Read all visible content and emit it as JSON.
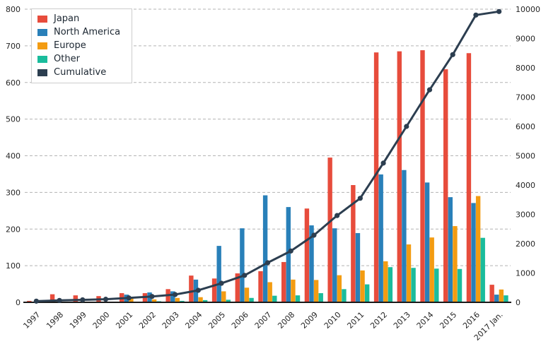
{
  "chart_data": {
    "type": "bar+line combo",
    "grid": "horizontal-dashed",
    "legend_position": "top-left",
    "categories": [
      "1997",
      "1998",
      "1999",
      "2000",
      "2001",
      "2002",
      "2003",
      "2004",
      "2005",
      "2006",
      "2007",
      "2008",
      "2009",
      "2010",
      "2011",
      "2012",
      "2013",
      "2014",
      "2015",
      "2016",
      "2017 Jan."
    ],
    "series": [
      {
        "name": "Japan",
        "type": "bar",
        "axis": "left",
        "color": "#e74c3c",
        "values": [
          4,
          22,
          19,
          17,
          25,
          25,
          36,
          73,
          65,
          79,
          85,
          110,
          256,
          395,
          320,
          682,
          685,
          688,
          636,
          680,
          48
        ]
      },
      {
        "name": "North America",
        "type": "bar",
        "axis": "left",
        "color": "#2980b9",
        "values": [
          0,
          0,
          0,
          0,
          21,
          27,
          30,
          62,
          154,
          202,
          292,
          260,
          210,
          202,
          189,
          349,
          361,
          327,
          287,
          271,
          21
        ]
      },
      {
        "name": "Europe",
        "type": "bar",
        "axis": "left",
        "color": "#f39c12",
        "values": [
          0,
          0,
          0,
          0,
          10,
          8,
          12,
          14,
          30,
          40,
          55,
          62,
          61,
          74,
          87,
          112,
          158,
          177,
          208,
          290,
          35
        ]
      },
      {
        "name": "Other",
        "type": "bar",
        "axis": "left",
        "color": "#1abc9c",
        "values": [
          0,
          0,
          0,
          0,
          0,
          3,
          4,
          6,
          7,
          12,
          18,
          19,
          25,
          36,
          49,
          96,
          94,
          92,
          91,
          176,
          19
        ]
      },
      {
        "name": "Cumulative",
        "type": "line",
        "axis": "right",
        "color": "#2c3e50",
        "values": [
          40,
          65,
          85,
          105,
          150,
          200,
          265,
          410,
          650,
          920,
          1350,
          1750,
          2290,
          2960,
          3550,
          4750,
          6000,
          7250,
          8450,
          9800,
          9920
        ]
      }
    ],
    "left_axis": {
      "min": 0,
      "max": 800,
      "step": 100,
      "tick_labels": [
        "0",
        "100",
        "200",
        "300",
        "400",
        "500",
        "600",
        "700",
        "800"
      ]
    },
    "right_axis": {
      "min": 0,
      "max": 10000,
      "step": 1000,
      "tick_labels": [
        "0",
        "1000",
        "2000",
        "3000",
        "4000",
        "5000",
        "6000",
        "7000",
        "8000",
        "9000",
        "10000"
      ]
    }
  },
  "colors": {
    "background": "#ffffff",
    "gridline": "#b3b3b3",
    "axis_line": "#1a1a1a",
    "tick_label": "#262626",
    "legend_border": "#cdcdcd",
    "legend_text": "#1b2631"
  }
}
